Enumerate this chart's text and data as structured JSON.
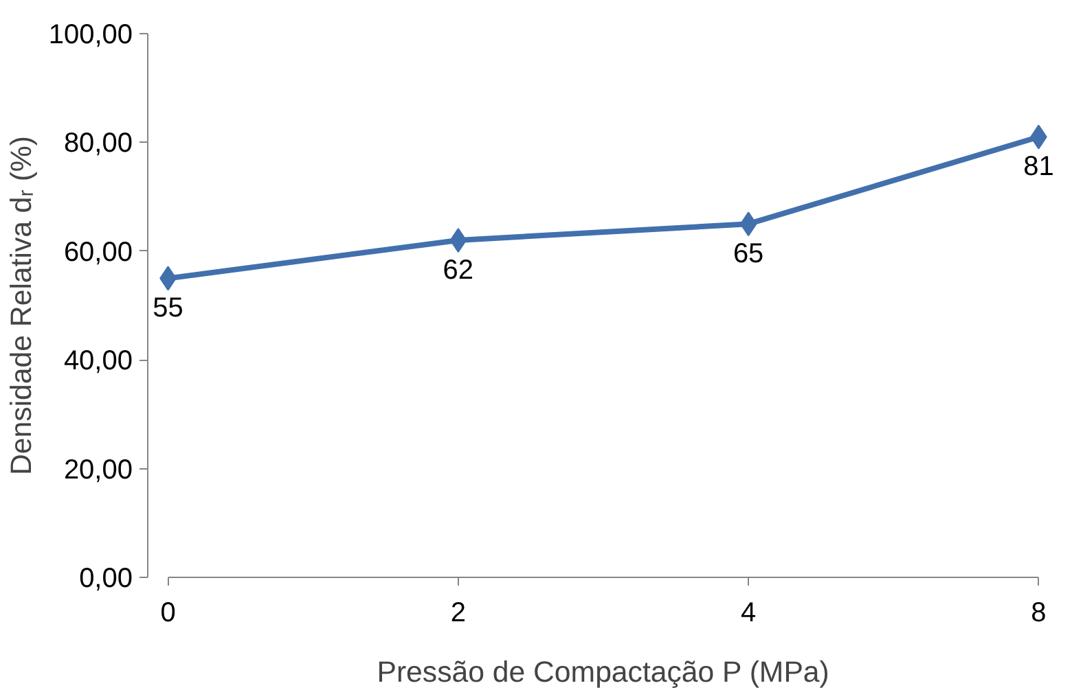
{
  "chart_data": {
    "type": "line",
    "xlabel": "Pressão de Compactação P (MPa)",
    "ylabel": "Densidade Relativa dᵣ (%)",
    "categories": [
      "0",
      "2",
      "4",
      "8"
    ],
    "series": [
      {
        "color": "#4270ad",
        "values": [
          55,
          62,
          65,
          81
        ]
      }
    ],
    "ylim": [
      0,
      100
    ],
    "yticks": [
      {
        "value": 0,
        "label": "0,00"
      },
      {
        "value": 20,
        "label": "20,00"
      },
      {
        "value": 40,
        "label": "40,00"
      },
      {
        "value": 60,
        "label": "60,00"
      },
      {
        "value": 80,
        "label": "80,00"
      },
      {
        "value": 100,
        "label": "100,00"
      }
    ],
    "grid": false,
    "marker": "diamond",
    "line_style": "solid",
    "data_labels": true
  }
}
